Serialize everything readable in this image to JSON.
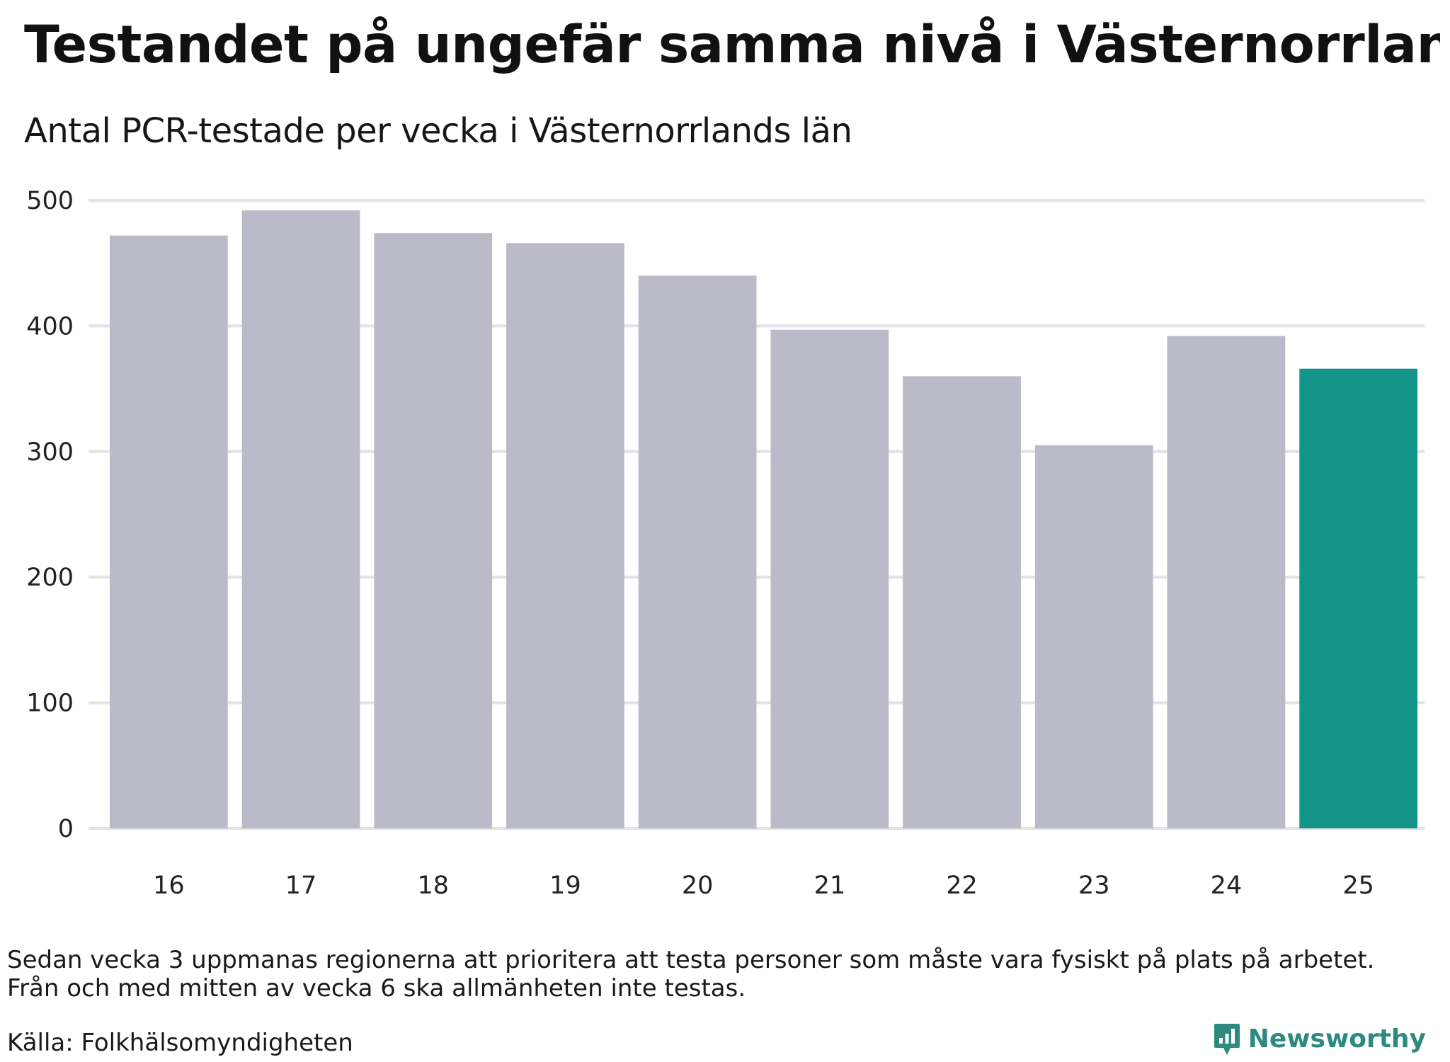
{
  "chart_data": {
    "type": "bar",
    "title": "Testandet på ungefär samma nivå i Västernorrland",
    "subtitle": "Antal PCR-testade per vecka i Västernorrlands län",
    "categories": [
      "16",
      "17",
      "18",
      "19",
      "20",
      "21",
      "22",
      "23",
      "24",
      "25"
    ],
    "values": [
      472,
      492,
      474,
      466,
      440,
      397,
      360,
      305,
      392,
      366
    ],
    "highlight_index": 9,
    "ylim": [
      0,
      500
    ],
    "yticks": [
      0,
      100,
      200,
      300,
      400,
      500
    ],
    "xlabel": "",
    "ylabel": "",
    "grid": true,
    "colors": {
      "default_bar": "#bbbac8",
      "highlight_bar": "#13958a",
      "grid": "#e2e2e6"
    }
  },
  "notes": [
    "Sedan vecka 3 uppmanas regionerna att prioritera att testa personer som måste vara fysiskt på plats på arbetet.",
    "Från och med mitten av vecka 6 ska allmänheten inte testas."
  ],
  "source": "Källa: Folkhälsomyndigheten",
  "brand": {
    "name": "Newsworthy",
    "icon": "newsworthy-logo-icon",
    "color": "#2d8a80"
  }
}
